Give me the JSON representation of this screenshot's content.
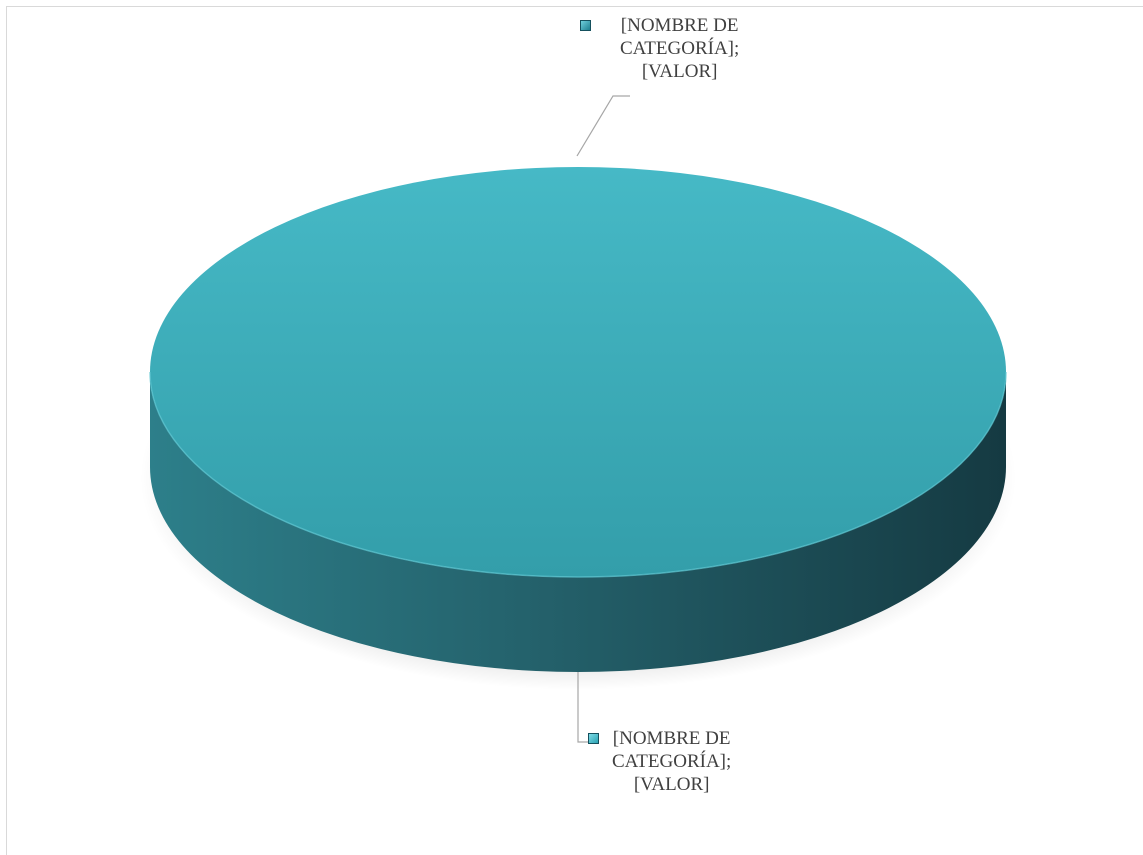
{
  "chart_data": {
    "type": "pie",
    "title": "",
    "slices": [
      {
        "category": "[NOMBRE DE CATEGORÍA]",
        "value": "[VALOR]",
        "label_lines": [
          "[NOMBRE DE",
          "CATEGORÍA];",
          "[VALOR]"
        ],
        "color": "#1f8091",
        "position": "top"
      },
      {
        "category": "[NOMBRE DE CATEGORÍA]",
        "value": "[VALOR]",
        "label_lines": [
          "[NOMBRE DE",
          "CATEGORÍA];",
          "[VALOR]"
        ],
        "color": "#2aa2b3",
        "position": "bottom"
      }
    ],
    "style": "3d",
    "legend": "none",
    "colors": {
      "top_face_light": "#46b9c6",
      "top_face_dark": "#339eaa",
      "side_light": "#2d7f8a",
      "side_dark": "#153a42",
      "label_text": "#404040",
      "leader_line": "#a6a6a6"
    }
  }
}
